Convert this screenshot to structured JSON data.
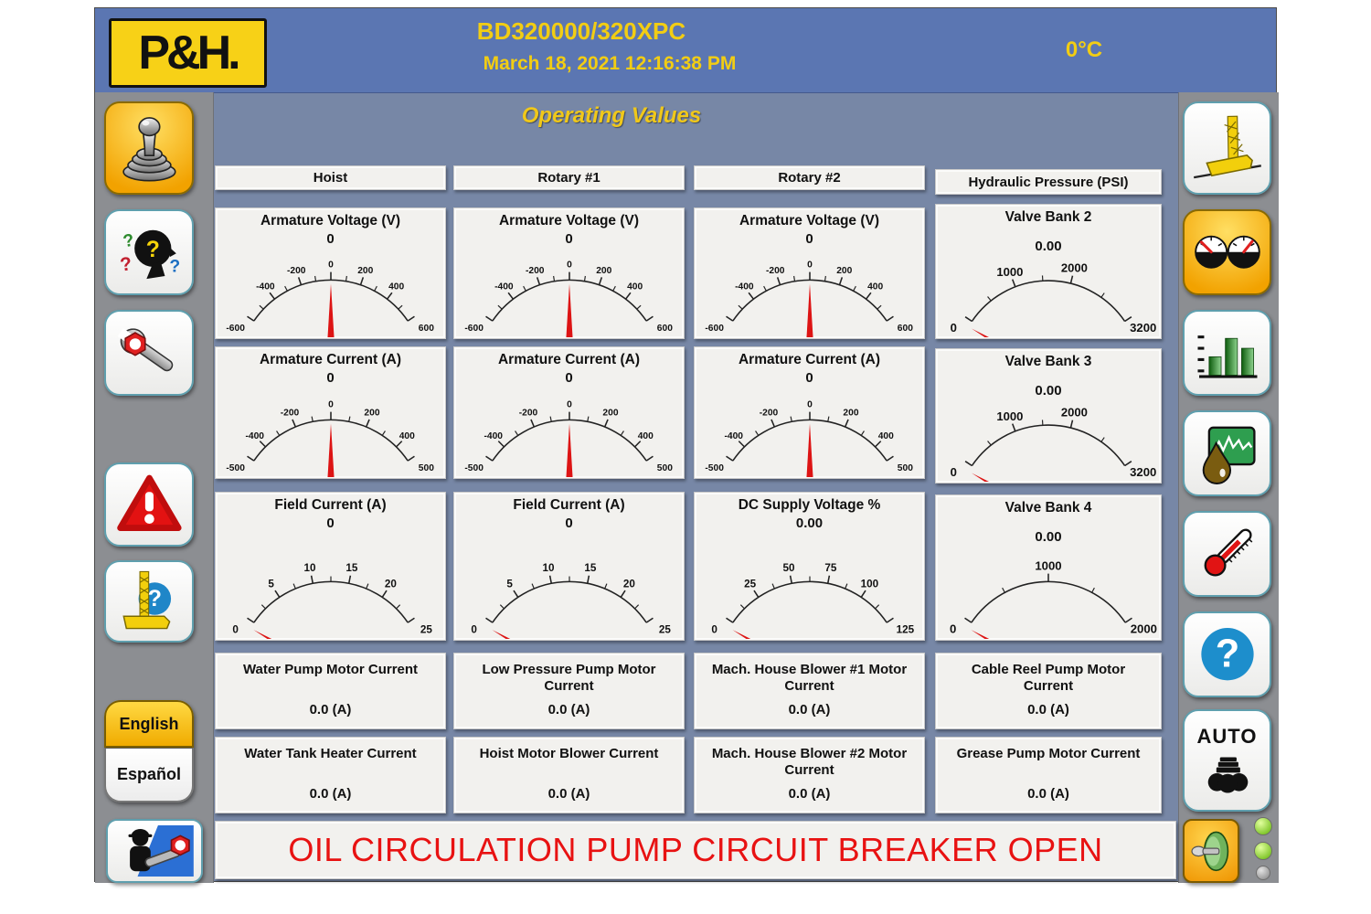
{
  "header": {
    "logo_text": "P&H.",
    "title": "BD320000/320XPC",
    "datetime": "March 18, 2021 12:16:38 PM",
    "temperature": "0°C"
  },
  "page_title": "Operating Values",
  "alarm_banner": "OIL CIRCULATION PUMP CIRCUIT BREAKER OPEN",
  "sidebar_left": {
    "english_label": "English",
    "espanol_label": "Español"
  },
  "sidebar_right": {
    "auto_label": "AUTO"
  },
  "colors": {
    "header_blue": "#5b76b2",
    "content_blue": "#7787a6",
    "sidebar_gray": "#8c8e92",
    "accent_yellow": "#f2cd13",
    "alarm_red": "#e81212",
    "needle_red": "#dd1414",
    "active_button_orange": "#f2a200",
    "led_green": "#8edc3c",
    "led_off_gray": "#ababab"
  },
  "columns": [
    {
      "header": "Hoist",
      "gauges": [
        {
          "title": "Armature Voltage (V)",
          "value": "0",
          "reading": 0,
          "min": -600,
          "max": 600,
          "tick_step": 100,
          "labels": [
            -600,
            -400,
            -200,
            0,
            200,
            400,
            600
          ],
          "label_size": 10.5
        },
        {
          "title": "Armature Current (A)",
          "value": "0",
          "reading": 0,
          "min": -500,
          "max": 500,
          "tick_step": 100,
          "labels": [
            -500,
            -400,
            -200,
            0,
            200,
            400,
            500
          ],
          "label_size": 10.5
        },
        {
          "title": "Field Current (A)",
          "value": "0",
          "reading": 0,
          "min": 0,
          "max": 25,
          "tick_step": 2.5,
          "labels": [
            0,
            5,
            10,
            15,
            20,
            25
          ],
          "label_size": 12
        }
      ],
      "cells": [
        {
          "label": "Water Pump Motor Current",
          "value": "0.0 (A)"
        },
        {
          "label": "Water Tank Heater Current",
          "value": "0.0 (A)"
        }
      ]
    },
    {
      "header": "Rotary #1",
      "gauges": [
        {
          "title": "Armature Voltage (V)",
          "value": "0",
          "reading": 0,
          "min": -600,
          "max": 600,
          "tick_step": 100,
          "labels": [
            -600,
            -400,
            -200,
            0,
            200,
            400,
            600
          ],
          "label_size": 10.5
        },
        {
          "title": "Armature Current (A)",
          "value": "0",
          "reading": 0,
          "min": -500,
          "max": 500,
          "tick_step": 100,
          "labels": [
            -500,
            -400,
            -200,
            0,
            200,
            400,
            500
          ],
          "label_size": 10.5
        },
        {
          "title": "Field Current (A)",
          "value": "0",
          "reading": 0,
          "min": 0,
          "max": 25,
          "tick_step": 2.5,
          "labels": [
            0,
            5,
            10,
            15,
            20,
            25
          ],
          "label_size": 12
        }
      ],
      "cells": [
        {
          "label": "Low Pressure Pump Motor Current",
          "value": "0.0 (A)"
        },
        {
          "label": "Hoist Motor Blower Current",
          "value": "0.0 (A)"
        }
      ]
    },
    {
      "header": "Rotary #2",
      "gauges": [
        {
          "title": "Armature Voltage (V)",
          "value": "0",
          "reading": 0,
          "min": -600,
          "max": 600,
          "tick_step": 100,
          "labels": [
            -600,
            -400,
            -200,
            0,
            200,
            400,
            600
          ],
          "label_size": 10.5
        },
        {
          "title": "Armature Current (A)",
          "value": "0",
          "reading": 0,
          "min": -500,
          "max": 500,
          "tick_step": 100,
          "labels": [
            -500,
            -400,
            -200,
            0,
            200,
            400,
            500
          ],
          "label_size": 10.5
        },
        {
          "title": "DC Supply Voltage %",
          "value": "0.00",
          "reading": 0,
          "min": 0,
          "max": 125,
          "tick_step": 12.5,
          "labels": [
            0,
            25,
            50,
            75,
            100,
            125
          ],
          "label_size": 12
        }
      ],
      "cells": [
        {
          "label": "Mach. House Blower #1 Motor Current",
          "value": "0.0 (A)"
        },
        {
          "label": "Mach. House Blower #2 Motor Current",
          "value": "0.0 (A)"
        }
      ]
    },
    {
      "header": "Hydraulic Pressure (PSI)",
      "gauges": [
        {
          "title": "Valve Bank 2",
          "value": "0.00",
          "reading": 0,
          "min": 0,
          "max": 3200,
          "ticks": [
            0,
            500,
            1000,
            1500,
            2000,
            2600,
            3200
          ],
          "labels": [
            0,
            1000,
            2000,
            3200
          ],
          "label_size": 13.5
        },
        {
          "title": "Valve Bank 3",
          "value": "0.00",
          "reading": 0,
          "min": 0,
          "max": 3200,
          "ticks": [
            0,
            500,
            1000,
            1500,
            2000,
            2600,
            3200
          ],
          "labels": [
            0,
            1000,
            2000,
            3200
          ],
          "label_size": 13.5
        },
        {
          "title": "Valve Bank 4",
          "value": "0.00",
          "reading": 0,
          "min": 0,
          "max": 2000,
          "ticks": [
            0,
            500,
            1000,
            1500,
            2000
          ],
          "labels": [
            0,
            1000,
            2000
          ],
          "label_size": 13.5
        }
      ],
      "cells": [
        {
          "label": "Cable Reel Pump Motor Current",
          "value": "0.0 (A)"
        },
        {
          "label": "Grease Pump Motor Current",
          "value": "0.0 (A)"
        }
      ]
    }
  ]
}
